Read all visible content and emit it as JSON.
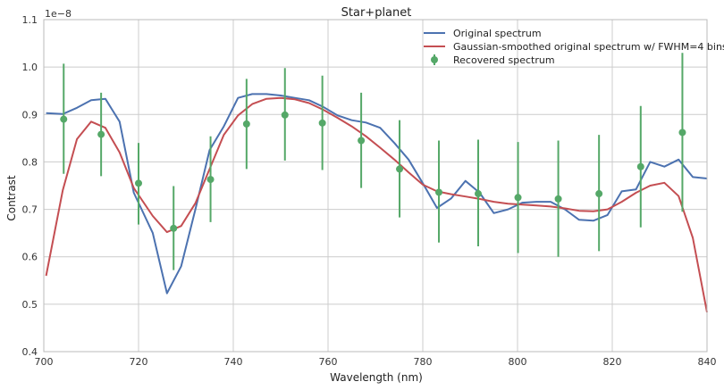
{
  "chart_data": {
    "type": "line",
    "title": "Star+planet",
    "xlabel": "Wavelength (nm)",
    "ylabel": "Contrast",
    "y_offset_label": "1e−8",
    "xlim": [
      700,
      840
    ],
    "ylim": [
      0.4,
      1.1
    ],
    "x_ticks": [
      700,
      720,
      740,
      760,
      780,
      800,
      820,
      840
    ],
    "y_ticks": [
      0.4,
      0.5,
      0.6,
      0.7,
      0.8,
      0.9,
      1.0,
      1.1
    ],
    "y_tick_labels": [
      "0.4",
      "0.5",
      "0.6",
      "0.7",
      "0.8",
      "0.9",
      "1.0",
      "1.1"
    ],
    "grid": true,
    "legend_position": "top-right",
    "colors": {
      "original": "#4c72b0",
      "smoothed": "#c44e52",
      "recovered": "#55a868",
      "grid": "#cccccc",
      "frame": "#bbbbbb"
    },
    "series": [
      {
        "name": "Original spectrum",
        "kind": "line",
        "x": [
          700.5,
          704,
          707,
          710,
          713,
          716,
          719,
          723,
          726,
          729,
          732,
          735,
          738,
          741,
          744,
          747,
          750,
          753,
          756,
          759,
          762,
          765,
          768,
          771,
          774,
          777,
          780,
          783,
          786,
          789,
          792,
          795,
          798,
          801,
          804,
          807,
          810,
          813,
          816,
          819,
          822,
          825,
          828,
          831,
          834,
          837,
          840
        ],
        "y": [
          0.903,
          0.901,
          0.914,
          0.93,
          0.933,
          0.885,
          0.735,
          0.65,
          0.523,
          0.58,
          0.7,
          0.825,
          0.875,
          0.935,
          0.943,
          0.943,
          0.94,
          0.935,
          0.93,
          0.916,
          0.898,
          0.888,
          0.883,
          0.872,
          0.84,
          0.805,
          0.755,
          0.703,
          0.723,
          0.76,
          0.735,
          0.692,
          0.7,
          0.714,
          0.716,
          0.716,
          0.7,
          0.678,
          0.676,
          0.688,
          0.738,
          0.742,
          0.8,
          0.79,
          0.805,
          0.768,
          0.765
        ]
      },
      {
        "name": "Gaussian-smoothed original spectrum w/ FWHM=4 bins",
        "kind": "line",
        "x": [
          700.5,
          704,
          707,
          710,
          713,
          716,
          719,
          723,
          726,
          729,
          732,
          735,
          738,
          741,
          744,
          747,
          750,
          753,
          756,
          759,
          762,
          765,
          768,
          771,
          774,
          777,
          780,
          783,
          786,
          789,
          792,
          795,
          798,
          801,
          804,
          807,
          810,
          813,
          816,
          819,
          822,
          825,
          828,
          831,
          834,
          837,
          840
        ],
        "y": [
          0.56,
          0.74,
          0.848,
          0.885,
          0.872,
          0.82,
          0.745,
          0.686,
          0.652,
          0.665,
          0.713,
          0.785,
          0.857,
          0.898,
          0.922,
          0.933,
          0.935,
          0.932,
          0.924,
          0.91,
          0.893,
          0.875,
          0.854,
          0.83,
          0.805,
          0.778,
          0.752,
          0.738,
          0.732,
          0.727,
          0.722,
          0.716,
          0.712,
          0.71,
          0.708,
          0.706,
          0.702,
          0.697,
          0.696,
          0.7,
          0.716,
          0.735,
          0.75,
          0.756,
          0.728,
          0.64,
          0.483
        ]
      },
      {
        "name": "Recovered spectrum",
        "kind": "errorbar",
        "x": [
          704.2,
          712.1,
          720.0,
          727.4,
          735.2,
          742.8,
          750.9,
          758.8,
          767.0,
          775.1,
          783.4,
          791.7,
          800.1,
          808.6,
          817.2,
          826.0,
          834.8
        ],
        "y": [
          0.89,
          0.858,
          0.755,
          0.66,
          0.763,
          0.88,
          0.899,
          0.882,
          0.845,
          0.785,
          0.736,
          0.733,
          0.725,
          0.722,
          0.733,
          0.79,
          0.862
        ],
        "yerr_low": [
          0.775,
          0.77,
          0.668,
          0.572,
          0.673,
          0.785,
          0.803,
          0.783,
          0.745,
          0.683,
          0.63,
          0.622,
          0.608,
          0.6,
          0.612,
          0.662,
          0.695
        ],
        "yerr_high": [
          1.007,
          0.946,
          0.84,
          0.749,
          0.854,
          0.975,
          0.998,
          0.982,
          0.946,
          0.888,
          0.845,
          0.847,
          0.842,
          0.845,
          0.857,
          0.918,
          1.03
        ]
      }
    ]
  }
}
